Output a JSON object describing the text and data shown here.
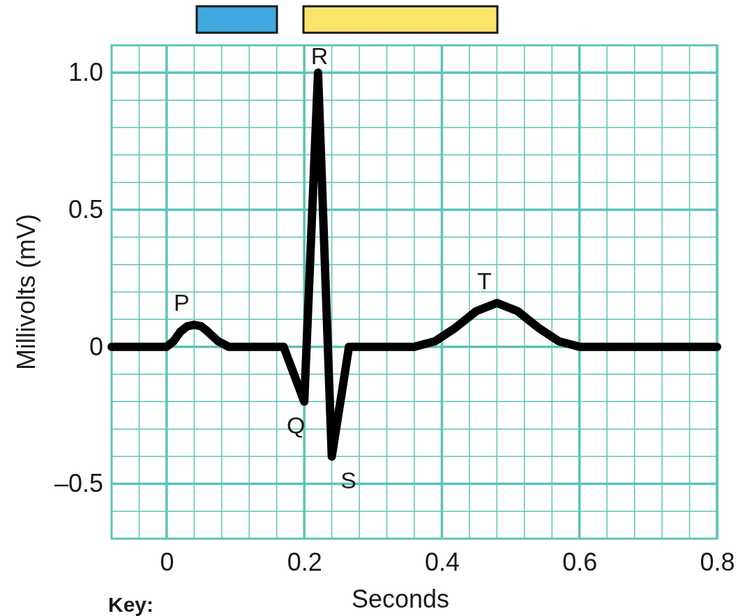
{
  "chart_data": {
    "type": "line",
    "xlabel": "Seconds",
    "ylabel": "Millivolts (mV)",
    "x": [
      -0.08,
      0,
      0.01,
      0.02,
      0.03,
      0.04,
      0.05,
      0.06,
      0.075,
      0.09,
      0.17,
      0.2,
      0.22,
      0.24,
      0.265,
      0.36,
      0.39,
      0.42,
      0.45,
      0.48,
      0.51,
      0.54,
      0.57,
      0.6,
      0.8
    ],
    "series": [
      {
        "color": "#000000",
        "values": [
          0,
          0,
          0.02,
          0.055,
          0.075,
          0.08,
          0.075,
          0.055,
          0.02,
          0,
          0,
          -0.2,
          1.0,
          -0.4,
          0,
          0,
          0.02,
          0.07,
          0.13,
          0.16,
          0.13,
          0.07,
          0.02,
          0,
          0
        ]
      }
    ],
    "xlim": [
      -0.08,
      0.8
    ],
    "ylim": [
      -0.7,
      1.1
    ],
    "xticks": [
      {
        "value": -0.04,
        "label": null
      },
      0,
      {
        "value": 0.04,
        "label": null
      },
      {
        "value": 0.08,
        "label": null
      },
      {
        "value": 0.12,
        "label": null
      },
      {
        "value": 0.16,
        "label": null
      },
      0.2,
      {
        "value": 0.24,
        "label": null
      },
      {
        "value": 0.28,
        "label": null
      },
      {
        "value": 0.32,
        "label": null
      },
      {
        "value": 0.36,
        "label": null
      },
      0.4,
      {
        "value": 0.44,
        "label": null
      },
      {
        "value": 0.48,
        "label": null
      },
      {
        "value": 0.52,
        "label": null
      },
      {
        "value": 0.56,
        "label": null
      },
      0.6,
      {
        "value": 0.64,
        "label": null
      },
      {
        "value": 0.68,
        "label": null
      },
      {
        "value": 0.72,
        "label": null
      },
      {
        "value": 0.76,
        "label": null
      },
      0.8
    ],
    "yticks": [
      {
        "value": -0.6,
        "label": null
      },
      {
        "value": -0.5,
        "label": "–0.5"
      },
      {
        "value": -0.4,
        "label": null
      },
      {
        "value": -0.3,
        "label": null
      },
      {
        "value": -0.2,
        "label": null
      },
      {
        "value": -0.1,
        "label": null
      },
      0,
      {
        "value": 0.1,
        "label": null
      },
      {
        "value": 0.2,
        "label": null
      },
      {
        "value": 0.3,
        "label": null
      },
      {
        "value": 0.4,
        "label": null
      },
      0.5,
      {
        "value": 0.6,
        "label": null
      },
      {
        "value": 0.7,
        "label": null
      },
      {
        "value": 0.8,
        "label": null
      },
      {
        "value": 0.9,
        "label": null
      },
      {
        "value": 1.0,
        "label": "1.0"
      }
    ],
    "grid": true,
    "marker": "none",
    "line_style": "solid",
    "annotations": [
      {
        "text": "P",
        "x": 0.04,
        "y": 0.08
      },
      {
        "text": "Q",
        "x": 0.2,
        "y": -0.2
      },
      {
        "text": "R",
        "x": 0.22,
        "y": 1.0
      },
      {
        "text": "S",
        "x": 0.24,
        "y": -0.4
      },
      {
        "text": "T",
        "x": 0.48,
        "y": 0.16
      },
      "Key:"
    ]
  }
}
